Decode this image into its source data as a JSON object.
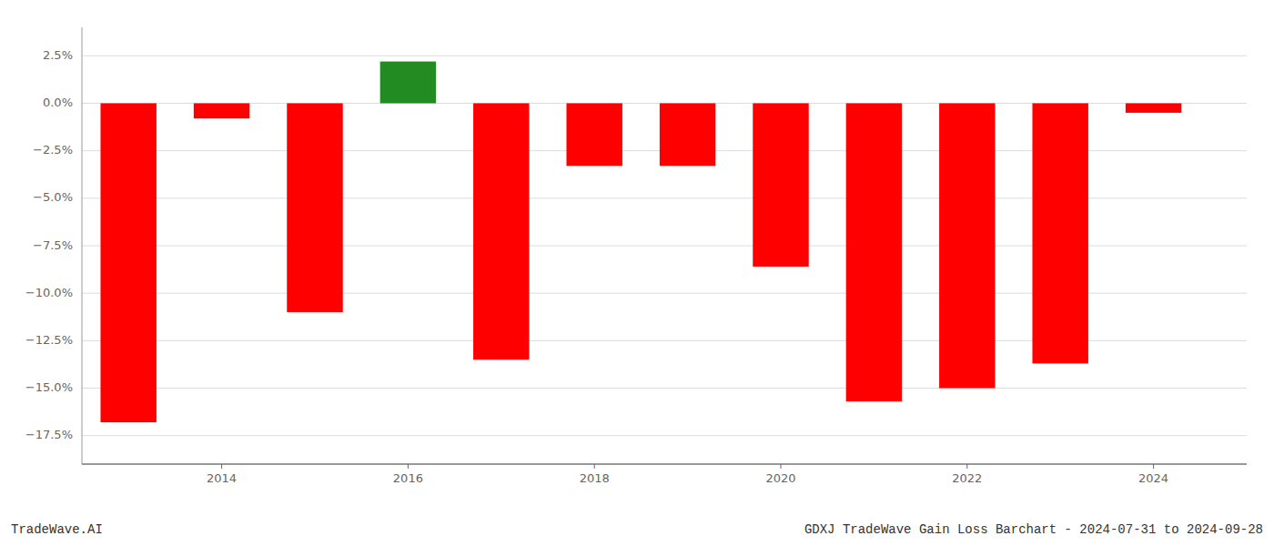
{
  "chart_data": {
    "type": "bar",
    "title": "GDXJ TradeWave Gain Loss Barchart - 2024-07-31 to 2024-09-28",
    "annotations": [
      "TradeWave.AI"
    ],
    "x": [
      2013,
      2014,
      2015,
      2016,
      2017,
      2018,
      2019,
      2020,
      2021,
      2022,
      2023,
      2024
    ],
    "values": [
      -16.8,
      -0.8,
      -11.0,
      2.2,
      -13.5,
      -3.3,
      -3.3,
      -8.6,
      -15.7,
      -15.0,
      -13.7,
      -0.5
    ],
    "colors": [
      "#ff0000",
      "#ff0000",
      "#ff0000",
      "#228B22",
      "#ff0000",
      "#ff0000",
      "#ff0000",
      "#ff0000",
      "#ff0000",
      "#ff0000",
      "#ff0000",
      "#ff0000"
    ],
    "ylim": [
      -19.0,
      4.0
    ],
    "yticks": [
      {
        "value": 0.0,
        "label": "0.0%"
      },
      {
        "value": -2.5,
        "label": "−2.5%"
      },
      {
        "value": -5.0,
        "label": "−5.0%"
      },
      {
        "value": -7.5,
        "label": "−7.5%"
      },
      {
        "value": -10.0,
        "label": "−10.0%"
      },
      {
        "value": -12.5,
        "label": "−12.5%"
      },
      {
        "value": -15.0,
        "label": "−15.0%"
      },
      {
        "value": -17.5,
        "label": "−17.5%"
      },
      {
        "value": 2.5,
        "label": "2.5%"
      }
    ],
    "xlim": [
      2012.5,
      2025.0
    ],
    "xticks": [
      2014,
      2016,
      2018,
      2020,
      2022,
      2024
    ],
    "grid": true
  }
}
